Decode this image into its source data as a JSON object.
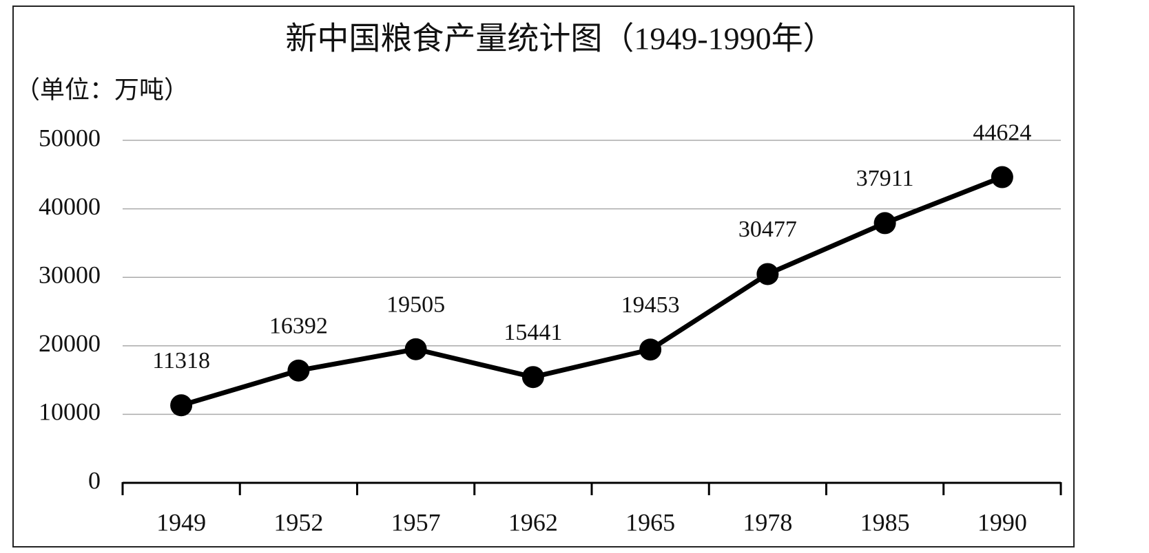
{
  "chart_data": {
    "type": "line",
    "title": "新中国粮食产量统计图（1949-1990年）",
    "unit_label": "（单位：万吨）",
    "categories": [
      "1949",
      "1952",
      "1957",
      "1962",
      "1965",
      "1978",
      "1985",
      "1990"
    ],
    "values": [
      11318,
      16392,
      19505,
      15441,
      19453,
      30477,
      37911,
      44624
    ],
    "color": "#000000",
    "ylim": [
      0,
      50000
    ],
    "yticks": [
      0,
      10000,
      20000,
      30000,
      40000,
      50000
    ],
    "grid": true
  }
}
